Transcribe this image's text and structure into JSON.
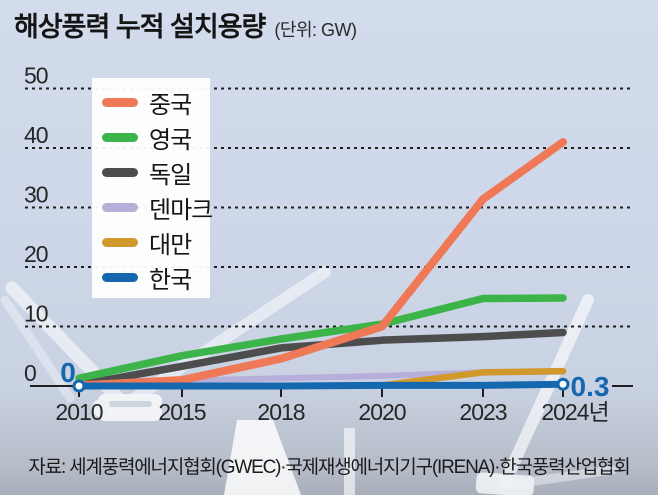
{
  "title": "해상풍력 누적 설치용량",
  "unit_label": "(단위: GW)",
  "source": "자료: 세계풍력에너지협회(GWEC)·국제재생에너지기구(IRENA)·한국풍력산업협회",
  "colors": {
    "background_top": "#d3dcec",
    "background_bottom": "#a8afba",
    "grid": "#1f1f1f",
    "annotation_blue": "#1668ae",
    "legend_background": "#ffffff"
  },
  "chart_data": {
    "type": "line",
    "title": "해상풍력 누적 설치용량",
    "unit": "GW",
    "categories": [
      "2010",
      "2015",
      "2018",
      "2020",
      "2023",
      "2024년"
    ],
    "yticks": [
      0,
      10,
      20,
      30,
      40,
      50
    ],
    "ylim": [
      0,
      50
    ],
    "grid": "horizontal dashed",
    "legend_position": "upper-left",
    "series": [
      {
        "name": "중국",
        "color": "#ef7857",
        "values": [
          0.1,
          1.0,
          4.6,
          10.0,
          31.4,
          41.0
        ]
      },
      {
        "name": "영국",
        "color": "#3db449",
        "values": [
          1.3,
          5.1,
          7.9,
          10.4,
          14.7,
          14.8
        ]
      },
      {
        "name": "독일",
        "color": "#4d4d4d",
        "values": [
          0.2,
          3.3,
          6.4,
          7.7,
          8.3,
          9.0
        ]
      },
      {
        "name": "덴마크",
        "color": "#b7aed9",
        "values": [
          0.4,
          0.9,
          1.3,
          1.7,
          2.3,
          2.4
        ]
      },
      {
        "name": "대만",
        "color": "#d1992b",
        "values": [
          0,
          0,
          0,
          0.1,
          2.3,
          2.5
        ]
      },
      {
        "name": "한국",
        "color": "#1668ae",
        "values": [
          0,
          0,
          0,
          0.1,
          0.1,
          0.3
        ]
      }
    ],
    "annotations": [
      {
        "text": "0",
        "series": "한국",
        "category": "2010",
        "value": 0
      },
      {
        "text": "0.3",
        "series": "한국",
        "category": "2024년",
        "value": 0.3
      }
    ]
  }
}
